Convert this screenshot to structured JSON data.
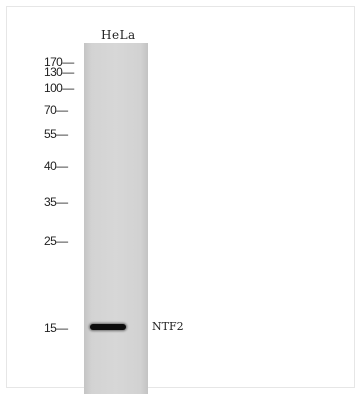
{
  "lane_label": "HeLa",
  "markers": [
    {
      "label": "170—",
      "kda": 170
    },
    {
      "label": "130—",
      "kda": 130
    },
    {
      "label": "100—",
      "kda": 100
    },
    {
      "label": "70—",
      "kda": 70
    },
    {
      "label": "55—",
      "kda": 55
    },
    {
      "label": "40—",
      "kda": 40
    },
    {
      "label": "35—",
      "kda": 35
    },
    {
      "label": "25—",
      "kda": 25
    },
    {
      "label": "15—",
      "kda": 15
    }
  ],
  "band": {
    "label": "NTF2"
  }
}
